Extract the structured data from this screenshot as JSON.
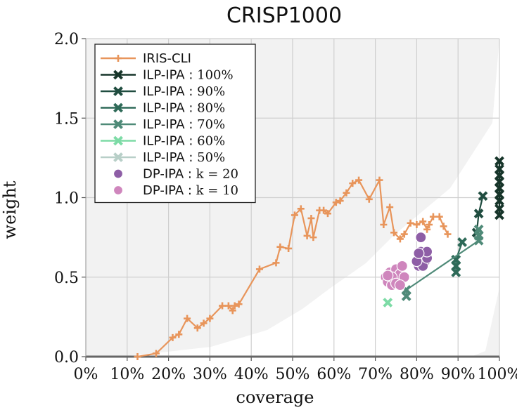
{
  "chart_data": {
    "type": "scatter",
    "title": "CRISP1000",
    "xlabel": "coverage",
    "ylabel": "weight",
    "xlim": [
      0,
      100
    ],
    "ylim": [
      0,
      2.0
    ],
    "x_ticks": [
      "0%",
      "10%",
      "20%",
      "30%",
      "40%",
      "50%",
      "60%",
      "70%",
      "80%",
      "90%",
      "100%"
    ],
    "y_ticks": [
      "0.0",
      "0.5",
      "1.0",
      "1.5",
      "2.0"
    ],
    "grid": true,
    "legend_position": "top-left",
    "background_region_color": "#f2f2f2",
    "series": [
      {
        "name": "IRIS-CLI",
        "kind": "line",
        "marker": "plus",
        "color": "#e8955b",
        "points": [
          [
            12.5,
            0.0
          ],
          [
            17,
            0.02
          ],
          [
            21,
            0.12
          ],
          [
            22.5,
            0.14
          ],
          [
            24.5,
            0.24
          ],
          [
            27,
            0.18
          ],
          [
            28.5,
            0.21
          ],
          [
            30,
            0.24
          ],
          [
            33,
            0.32
          ],
          [
            34.5,
            0.32
          ],
          [
            35.5,
            0.29
          ],
          [
            36,
            0.32
          ],
          [
            37,
            0.33
          ],
          [
            42,
            0.55
          ],
          [
            46,
            0.59
          ],
          [
            47,
            0.69
          ],
          [
            49,
            0.68
          ],
          [
            50.5,
            0.89
          ],
          [
            52,
            0.93
          ],
          [
            53.5,
            0.76
          ],
          [
            54.5,
            0.87
          ],
          [
            55,
            0.75
          ],
          [
            56.5,
            0.92
          ],
          [
            57.5,
            0.92
          ],
          [
            58.5,
            0.9
          ],
          [
            60.5,
            0.97
          ],
          [
            61.5,
            0.98
          ],
          [
            63,
            1.03
          ],
          [
            64.5,
            1.09
          ],
          [
            66,
            1.11
          ],
          [
            68.5,
            0.99
          ],
          [
            71,
            1.11
          ],
          [
            72,
            0.83
          ],
          [
            73.5,
            0.94
          ],
          [
            74.5,
            0.78
          ],
          [
            76,
            0.74
          ],
          [
            77,
            0.77
          ],
          [
            78.5,
            0.84
          ],
          [
            80,
            0.83
          ],
          [
            81.5,
            0.85
          ],
          [
            82.5,
            0.8
          ],
          [
            83,
            0.83
          ],
          [
            84,
            0.88
          ],
          [
            85.5,
            0.88
          ],
          [
            86.5,
            0.82
          ],
          [
            87.5,
            0.77
          ]
        ]
      },
      {
        "name": "ILP-IPA : 100%",
        "kind": "line",
        "marker": "x",
        "color": "#17352a",
        "points": [
          [
            100,
            0.89
          ],
          [
            100,
            0.93
          ],
          [
            100,
            0.98
          ],
          [
            100,
            1.02
          ],
          [
            100,
            1.06
          ],
          [
            100,
            1.1
          ],
          [
            100,
            1.14
          ],
          [
            100,
            1.18
          ],
          [
            100,
            1.23
          ]
        ]
      },
      {
        "name": "ILP-IPA : 90%",
        "kind": "line",
        "marker": "x",
        "color": "#204d40",
        "points": [
          [
            94.5,
            0.78
          ],
          [
            95,
            0.9
          ],
          [
            96,
            1.01
          ]
        ]
      },
      {
        "name": "ILP-IPA : 80%",
        "kind": "line",
        "marker": "x",
        "color": "#2e6a58",
        "points": [
          [
            89.5,
            0.53
          ],
          [
            89.5,
            0.57
          ],
          [
            89.5,
            0.61
          ],
          [
            91,
            0.72
          ]
        ]
      },
      {
        "name": "ILP-IPA : 70%",
        "kind": "line",
        "marker": "x",
        "color": "#4f8a78",
        "points": [
          [
            77.5,
            0.38
          ],
          [
            77.5,
            0.42
          ],
          [
            95,
            0.73
          ],
          [
            95,
            0.76
          ],
          [
            95,
            0.8
          ]
        ]
      },
      {
        "name": "ILP-IPA : 60%",
        "kind": "line",
        "marker": "x",
        "color": "#7ddba6",
        "points": [
          [
            73,
            0.34
          ]
        ]
      },
      {
        "name": "ILP-IPA : 50%",
        "kind": "line",
        "marker": "x",
        "color": "#b8cfc8",
        "points": []
      },
      {
        "name": "DP-IPA : k = 20",
        "kind": "scatter",
        "marker": "circle",
        "color": "#8e5ea6",
        "points": [
          [
            81,
            0.75
          ],
          [
            81,
            0.66
          ],
          [
            81.5,
            0.63
          ],
          [
            82,
            0.6
          ],
          [
            80.5,
            0.57
          ],
          [
            81.5,
            0.57
          ],
          [
            82.5,
            0.62
          ],
          [
            82.5,
            0.66
          ],
          [
            80,
            0.6
          ],
          [
            80.5,
            0.65
          ]
        ]
      },
      {
        "name": "DP-IPA : k = 10",
        "kind": "scatter",
        "marker": "circle",
        "color": "#cf86bd",
        "points": [
          [
            72.5,
            0.5
          ],
          [
            73,
            0.47
          ],
          [
            73.5,
            0.53
          ],
          [
            74,
            0.45
          ],
          [
            74.5,
            0.5
          ],
          [
            75,
            0.55
          ],
          [
            75.5,
            0.48
          ],
          [
            76,
            0.52
          ],
          [
            76.5,
            0.57
          ],
          [
            77,
            0.5
          ],
          [
            74,
            0.5
          ],
          [
            75,
            0.46
          ],
          [
            76,
            0.45
          ],
          [
            73,
            0.51
          ]
        ]
      }
    ]
  },
  "legend_labels": [
    {
      "main": "IRIS-CLI",
      "suffix": ""
    },
    {
      "main": "ILP-IPA : ",
      "suffix": "100%"
    },
    {
      "main": "ILP-IPA : ",
      "suffix": "90%"
    },
    {
      "main": "ILP-IPA : ",
      "suffix": "80%"
    },
    {
      "main": "ILP-IPA : ",
      "suffix": "70%"
    },
    {
      "main": "ILP-IPA : ",
      "suffix": "60%"
    },
    {
      "main": "ILP-IPA : ",
      "suffix": "50%"
    },
    {
      "main": "DP-IPA : ",
      "suffix": "k = 20"
    },
    {
      "main": "DP-IPA : ",
      "suffix": "k = 10"
    }
  ]
}
